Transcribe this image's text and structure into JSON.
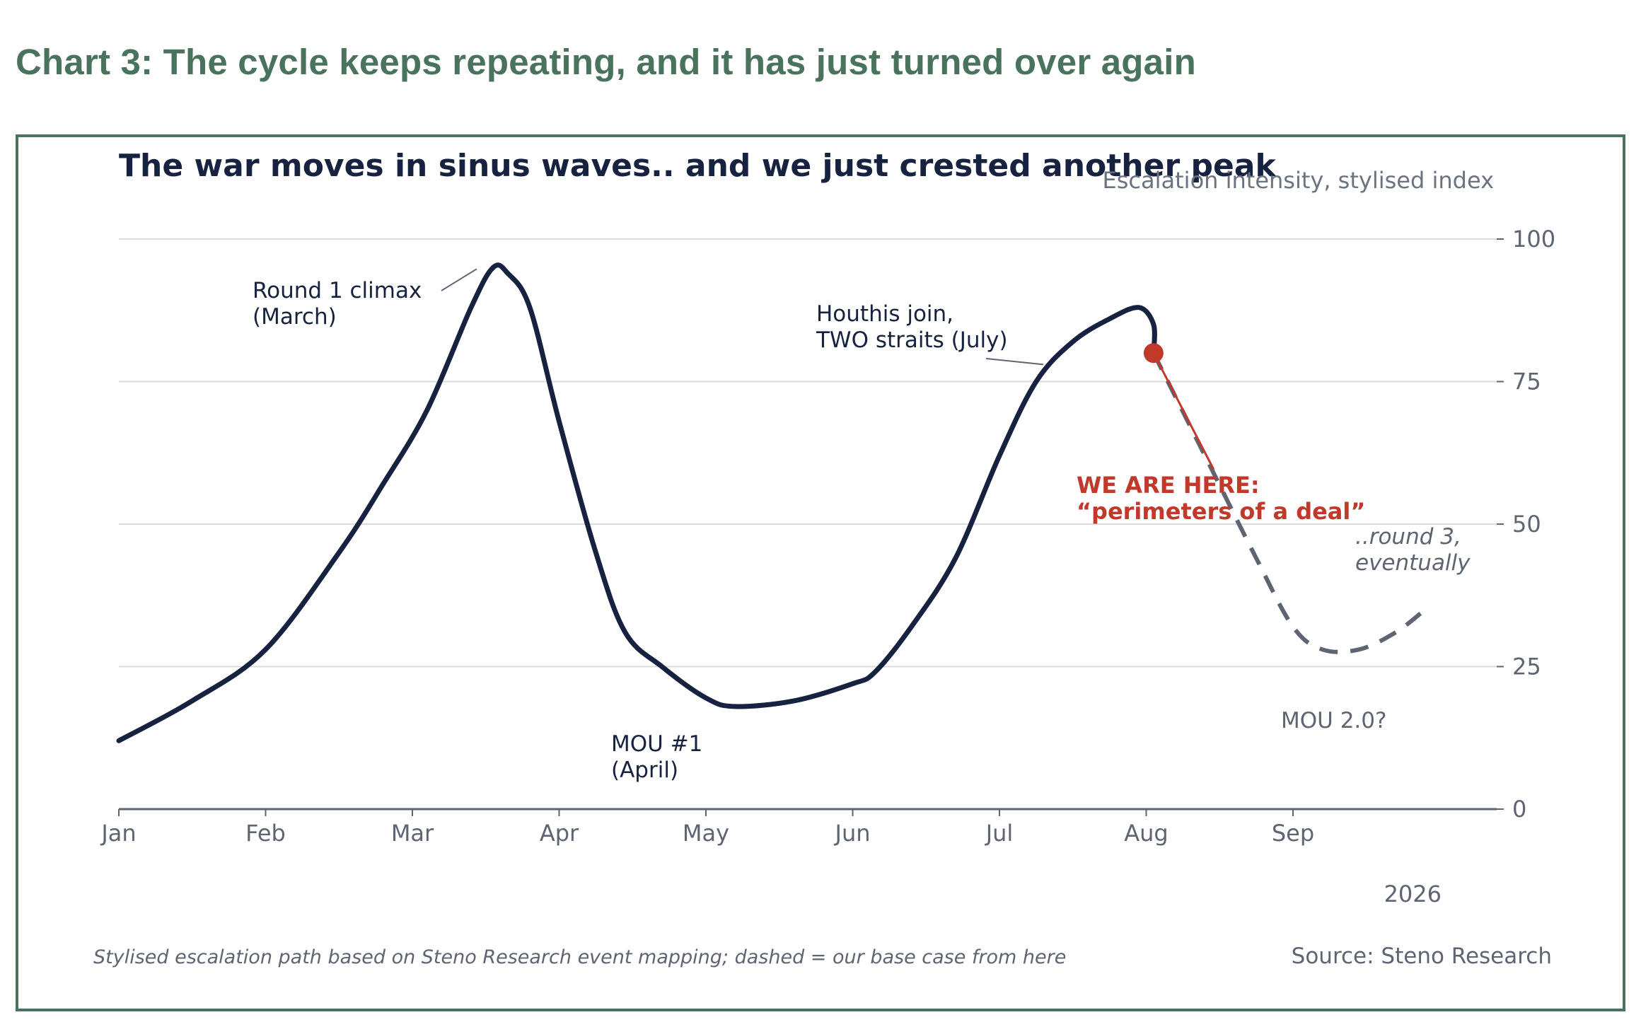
{
  "heading": "Chart 3: The cycle keeps repeating, and it has just turned over again",
  "chart_data": {
    "type": "line",
    "title": "The war moves in sinus waves.. and we just crested another peak",
    "ylabel": "Escalation intensity, stylised index",
    "year_label": "2026",
    "ylim": [
      0,
      100
    ],
    "yticks": [
      0,
      25,
      50,
      75,
      100
    ],
    "xticks": [
      "Jan",
      "Feb",
      "Mar",
      "Apr",
      "May",
      "Jun",
      "Jul",
      "Aug",
      "Sep"
    ],
    "grid": true,
    "series": [
      {
        "style": "solid",
        "points": [
          [
            0.0,
            12
          ],
          [
            0.5,
            19
          ],
          [
            1.0,
            28
          ],
          [
            1.5,
            45
          ],
          [
            1.8,
            57
          ],
          [
            2.1,
            70
          ],
          [
            2.4,
            88
          ],
          [
            2.55,
            95
          ],
          [
            2.65,
            94
          ],
          [
            2.8,
            88
          ],
          [
            3.0,
            68
          ],
          [
            3.25,
            45
          ],
          [
            3.45,
            31
          ],
          [
            3.7,
            25
          ],
          [
            4.0,
            19.5
          ],
          [
            4.2,
            18
          ],
          [
            4.6,
            19
          ],
          [
            5.0,
            22
          ],
          [
            5.15,
            24
          ],
          [
            5.4,
            32
          ],
          [
            5.7,
            44
          ],
          [
            6.0,
            62
          ],
          [
            6.25,
            75
          ],
          [
            6.5,
            82
          ],
          [
            6.75,
            86
          ],
          [
            6.95,
            88
          ],
          [
            7.05,
            85
          ],
          [
            7.05,
            80
          ]
        ]
      },
      {
        "style": "dashed",
        "points": [
          [
            7.05,
            80
          ],
          [
            7.4,
            62
          ],
          [
            7.75,
            44
          ],
          [
            8.0,
            32
          ],
          [
            8.2,
            28
          ],
          [
            8.45,
            28
          ],
          [
            8.7,
            31
          ],
          [
            8.9,
            35
          ]
        ]
      }
    ],
    "current_point": {
      "x": 7.05,
      "y": 80
    },
    "annotations": [
      {
        "id": "round1",
        "lines": [
          "Round 1 climax",
          "(March)"
        ],
        "x": 2.4,
        "y": 95
      },
      {
        "id": "mou1",
        "lines": [
          "MOU #1",
          "(April)"
        ]
      },
      {
        "id": "houthis",
        "lines": [
          "Houthis join,",
          "TWO straits (July)"
        ],
        "x": 6.3,
        "y": 78
      },
      {
        "id": "here",
        "lines": [
          "WE ARE HERE:",
          "“perimeters of a deal”"
        ]
      },
      {
        "id": "round3",
        "lines": [
          "..round 3,",
          "eventually"
        ]
      },
      {
        "id": "mou2",
        "lines": [
          "MOU 2.0?"
        ]
      }
    ],
    "footnote": "Stylised escalation path based on Steno Research event mapping; dashed = our base case from here",
    "source": "Source: Steno Research",
    "colors": {
      "line": "#16223f",
      "dashed": "#5e6472",
      "highlight": "#c0392b",
      "grid": "#dcdcdc",
      "axis": "#5e6472"
    }
  }
}
